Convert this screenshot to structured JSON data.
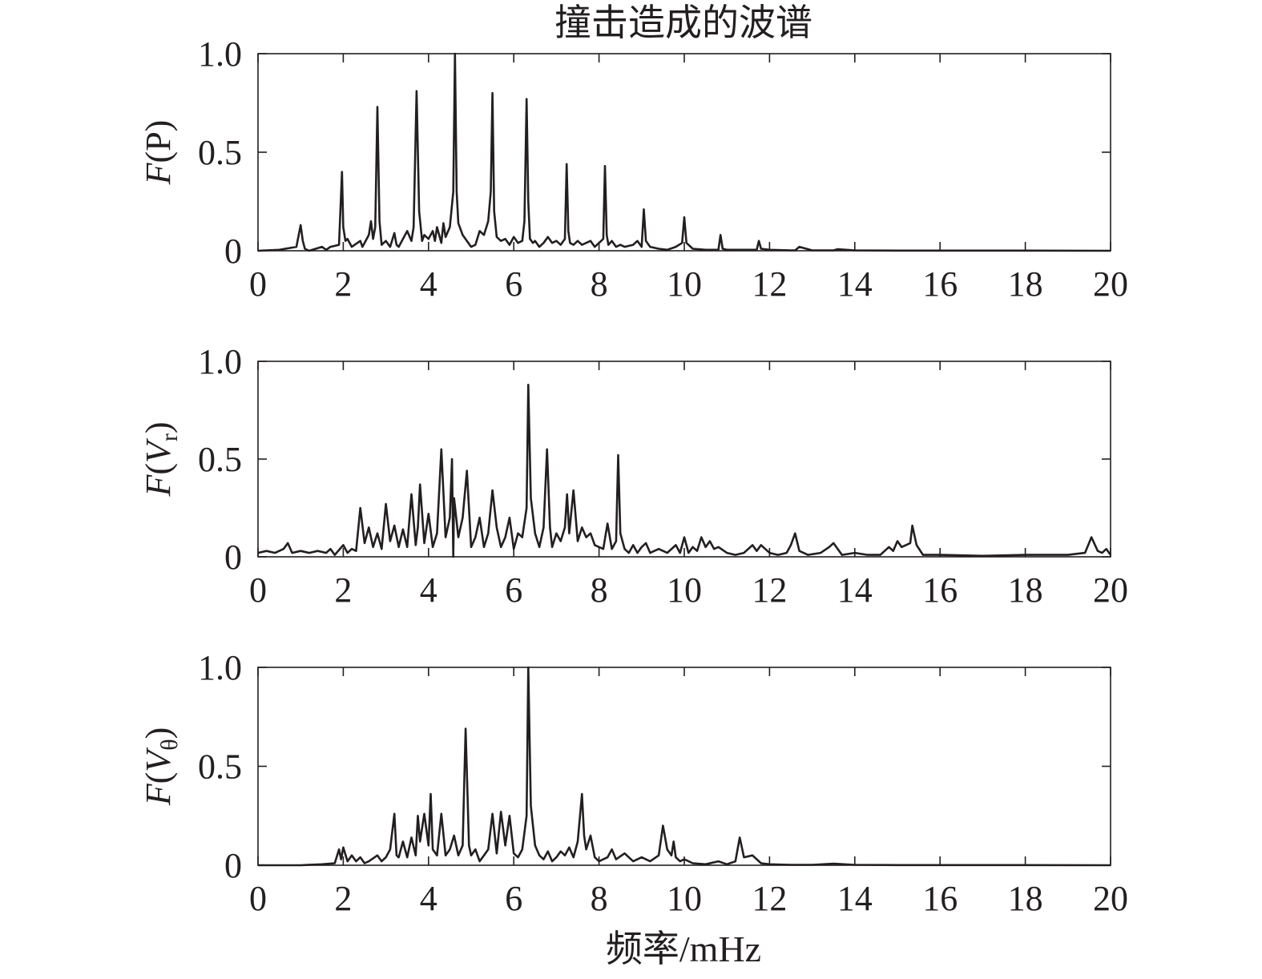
{
  "figure": {
    "title": "撞击造成的波谱",
    "xlabel": "频率/mHz"
  },
  "chart_data": [
    {
      "type": "line",
      "ylabel_parts": [
        {
          "text": "F",
          "italic": true,
          "sub": false
        },
        {
          "text": "(P)",
          "italic": false,
          "sub": false
        }
      ],
      "xlim": [
        0,
        20
      ],
      "ylim": [
        0,
        1
      ],
      "xticks": [
        "0",
        "2",
        "4",
        "6",
        "8",
        "10",
        "12",
        "14",
        "16",
        "18",
        "20"
      ],
      "yticks": [
        "0",
        "0.5",
        "1.0"
      ],
      "x": [
        0,
        0.5,
        0.9,
        1.0,
        1.05,
        1.1,
        1.2,
        1.5,
        1.6,
        1.7,
        1.9,
        1.97,
        2.0,
        2.05,
        2.1,
        2.2,
        2.4,
        2.45,
        2.5,
        2.6,
        2.65,
        2.7,
        2.75,
        2.8,
        2.85,
        2.9,
        2.95,
        3.0,
        3.1,
        3.2,
        3.25,
        3.3,
        3.4,
        3.5,
        3.6,
        3.65,
        3.72,
        3.78,
        3.85,
        3.9,
        4.0,
        4.1,
        4.15,
        4.2,
        4.3,
        4.35,
        4.4,
        4.5,
        4.58,
        4.62,
        4.66,
        4.7,
        4.8,
        4.9,
        5.0,
        5.1,
        5.2,
        5.3,
        5.4,
        5.46,
        5.5,
        5.54,
        5.6,
        5.7,
        5.8,
        5.9,
        6.0,
        6.1,
        6.2,
        6.25,
        6.3,
        6.34,
        6.38,
        6.45,
        6.5,
        6.6,
        6.7,
        6.8,
        6.9,
        7.0,
        7.1,
        7.2,
        7.24,
        7.28,
        7.32,
        7.4,
        7.5,
        7.6,
        7.7,
        7.8,
        7.9,
        8.0,
        8.1,
        8.14,
        8.18,
        8.22,
        8.3,
        8.4,
        8.5,
        8.6,
        8.8,
        8.9,
        9.0,
        9.05,
        9.1,
        9.2,
        9.4,
        9.6,
        9.8,
        9.95,
        10.0,
        10.05,
        10.2,
        10.5,
        10.8,
        10.85,
        10.9,
        11.0,
        11.5,
        11.7,
        11.75,
        11.8,
        12.0,
        12.5,
        12.6,
        12.7,
        13.0,
        13.5,
        13.6,
        14.0,
        15.0,
        16.0,
        18.0,
        20.0
      ],
      "y": [
        0,
        0.005,
        0.02,
        0.13,
        0.05,
        0.01,
        0,
        0.02,
        0.005,
        0.02,
        0.03,
        0.4,
        0.12,
        0.05,
        0.06,
        0.02,
        0.05,
        0.02,
        0.04,
        0.08,
        0.15,
        0.06,
        0.12,
        0.73,
        0.15,
        0.03,
        0.04,
        0.05,
        0.02,
        0.09,
        0.03,
        0.02,
        0.06,
        0.1,
        0.05,
        0.12,
        0.81,
        0.2,
        0.05,
        0.08,
        0.06,
        0.1,
        0.05,
        0.12,
        0.04,
        0.14,
        0.07,
        0.12,
        0.3,
        1.0,
        0.3,
        0.14,
        0.08,
        0.05,
        0.02,
        0.03,
        0.1,
        0.08,
        0.15,
        0.3,
        0.8,
        0.2,
        0.07,
        0.05,
        0.06,
        0.03,
        0.07,
        0.04,
        0.05,
        0.15,
        0.77,
        0.25,
        0.06,
        0.04,
        0.05,
        0.02,
        0.04,
        0.07,
        0.04,
        0.05,
        0.03,
        0.06,
        0.44,
        0.1,
        0.04,
        0.03,
        0.05,
        0.03,
        0.04,
        0.05,
        0.02,
        0.04,
        0.06,
        0.43,
        0.08,
        0.03,
        0.05,
        0.02,
        0.03,
        0.02,
        0.03,
        0.05,
        0.02,
        0.21,
        0.05,
        0.02,
        0.01,
        0.005,
        0.02,
        0.04,
        0.17,
        0.04,
        0.01,
        0.005,
        0.005,
        0.08,
        0.01,
        0.005,
        0.005,
        0.005,
        0.05,
        0.01,
        0.005,
        0.002,
        0.002,
        0.02,
        0.002,
        0.002,
        0.008,
        0.002,
        0.001,
        0.001,
        0.001,
        0
      ]
    },
    {
      "type": "line",
      "ylabel_parts": [
        {
          "text": "F",
          "italic": true,
          "sub": false
        },
        {
          "text": "(",
          "italic": false,
          "sub": false
        },
        {
          "text": "V",
          "italic": true,
          "sub": false
        },
        {
          "text": "r",
          "italic": false,
          "sub": true
        },
        {
          "text": ")",
          "italic": false,
          "sub": false
        }
      ],
      "xlim": [
        0,
        20
      ],
      "ylim": [
        0,
        1
      ],
      "xticks": [
        "0",
        "2",
        "4",
        "6",
        "8",
        "10",
        "12",
        "14",
        "16",
        "18",
        "20"
      ],
      "yticks": [
        "0",
        "0.5",
        "1.0"
      ],
      "x": [
        0,
        0.2,
        0.4,
        0.6,
        0.7,
        0.8,
        1.0,
        1.2,
        1.4,
        1.6,
        1.7,
        1.8,
        2.0,
        2.1,
        2.2,
        2.3,
        2.4,
        2.5,
        2.6,
        2.7,
        2.8,
        2.9,
        3.0,
        3.1,
        3.2,
        3.3,
        3.4,
        3.5,
        3.6,
        3.7,
        3.75,
        3.8,
        3.9,
        4.0,
        4.1,
        4.2,
        4.3,
        4.4,
        4.5,
        4.55,
        4.58,
        4.6,
        4.7,
        4.8,
        4.9,
        5.0,
        5.1,
        5.2,
        5.3,
        5.4,
        5.5,
        5.6,
        5.7,
        5.8,
        5.9,
        6.0,
        6.1,
        6.2,
        6.3,
        6.34,
        6.4,
        6.5,
        6.6,
        6.7,
        6.78,
        6.85,
        6.9,
        7.0,
        7.1,
        7.2,
        7.25,
        7.3,
        7.4,
        7.5,
        7.6,
        7.7,
        7.8,
        7.9,
        8.0,
        8.1,
        8.2,
        8.3,
        8.4,
        8.45,
        8.5,
        8.6,
        8.7,
        8.8,
        8.9,
        9.0,
        9.1,
        9.2,
        9.4,
        9.6,
        9.8,
        9.9,
        10.0,
        10.1,
        10.2,
        10.3,
        10.4,
        10.5,
        10.6,
        10.7,
        10.8,
        11.0,
        11.2,
        11.4,
        11.6,
        11.7,
        11.8,
        12.0,
        12.2,
        12.4,
        12.5,
        12.6,
        12.7,
        12.9,
        13.2,
        13.4,
        13.5,
        13.7,
        14.0,
        14.3,
        14.6,
        14.8,
        14.9,
        15.0,
        15.1,
        15.2,
        15.3,
        15.35,
        15.45,
        15.6,
        16.0,
        17.0,
        18.0,
        19.0,
        19.4,
        19.55,
        19.7,
        19.8,
        19.9,
        20.0
      ],
      "y": [
        0.02,
        0.03,
        0.02,
        0.04,
        0.07,
        0.02,
        0.03,
        0.02,
        0.03,
        0.02,
        0.04,
        0.01,
        0.06,
        0.02,
        0.04,
        0.03,
        0.25,
        0.07,
        0.15,
        0.05,
        0.12,
        0.04,
        0.27,
        0.08,
        0.16,
        0.05,
        0.14,
        0.05,
        0.32,
        0.06,
        0.15,
        0.37,
        0.07,
        0.22,
        0.05,
        0.12,
        0.55,
        0.1,
        0.2,
        0.5,
        0.0,
        0.3,
        0.1,
        0.2,
        0.44,
        0.05,
        0.1,
        0.2,
        0.05,
        0.12,
        0.34,
        0.15,
        0.05,
        0.1,
        0.2,
        0.04,
        0.12,
        0.1,
        0.25,
        0.88,
        0.3,
        0.12,
        0.05,
        0.15,
        0.55,
        0.15,
        0.05,
        0.12,
        0.08,
        0.15,
        0.32,
        0.12,
        0.34,
        0.08,
        0.15,
        0.1,
        0.12,
        0.06,
        0.05,
        0.04,
        0.17,
        0.04,
        0.08,
        0.52,
        0.12,
        0.04,
        0.02,
        0.06,
        0.02,
        0.05,
        0.07,
        0.02,
        0.04,
        0.02,
        0.06,
        0.02,
        0.1,
        0.02,
        0.05,
        0.03,
        0.1,
        0.05,
        0.08,
        0.04,
        0.05,
        0.02,
        0.01,
        0.02,
        0.06,
        0.03,
        0.06,
        0.02,
        0.01,
        0.02,
        0.06,
        0.12,
        0.03,
        0.01,
        0.02,
        0.05,
        0.07,
        0.01,
        0.02,
        0.01,
        0.01,
        0.05,
        0.03,
        0.08,
        0.05,
        0.06,
        0.07,
        0.16,
        0.06,
        0.01,
        0.01,
        0.005,
        0.01,
        0.01,
        0.02,
        0.1,
        0.03,
        0.02,
        0.04,
        0.01
      ]
    },
    {
      "type": "line",
      "ylabel_parts": [
        {
          "text": "F",
          "italic": true,
          "sub": false
        },
        {
          "text": "(",
          "italic": false,
          "sub": false
        },
        {
          "text": "V",
          "italic": true,
          "sub": false
        },
        {
          "text": "θ",
          "italic": false,
          "sub": true
        },
        {
          "text": ")",
          "italic": false,
          "sub": false
        }
      ],
      "xlim": [
        0,
        20
      ],
      "ylim": [
        0,
        1
      ],
      "xticks": [
        "0",
        "2",
        "4",
        "6",
        "8",
        "10",
        "12",
        "14",
        "16",
        "18",
        "20"
      ],
      "yticks": [
        "0",
        "0.5",
        "1.0"
      ],
      "x": [
        0,
        1.0,
        1.5,
        1.8,
        1.9,
        1.95,
        2.0,
        2.1,
        2.2,
        2.3,
        2.4,
        2.5,
        2.6,
        2.8,
        2.9,
        3.0,
        3.1,
        3.2,
        3.25,
        3.3,
        3.4,
        3.5,
        3.6,
        3.7,
        3.75,
        3.8,
        3.9,
        4.0,
        4.05,
        4.1,
        4.2,
        4.3,
        4.4,
        4.5,
        4.6,
        4.7,
        4.8,
        4.87,
        4.95,
        5.0,
        5.1,
        5.2,
        5.3,
        5.4,
        5.5,
        5.6,
        5.7,
        5.8,
        5.9,
        6.0,
        6.1,
        6.2,
        6.3,
        6.34,
        6.4,
        6.5,
        6.6,
        6.7,
        6.8,
        6.9,
        7.0,
        7.1,
        7.2,
        7.3,
        7.4,
        7.5,
        7.6,
        7.65,
        7.7,
        7.8,
        7.9,
        8.0,
        8.2,
        8.3,
        8.4,
        8.6,
        8.8,
        9.0,
        9.2,
        9.4,
        9.5,
        9.6,
        9.7,
        9.75,
        9.8,
        9.9,
        10.0,
        10.2,
        10.5,
        10.8,
        11.0,
        11.2,
        11.3,
        11.4,
        11.6,
        11.8,
        12.0,
        12.5,
        13.0,
        13.5,
        14.0,
        15.0,
        17.0,
        20.0
      ],
      "y": [
        0,
        0,
        0.005,
        0.01,
        0.08,
        0.03,
        0.09,
        0.02,
        0.05,
        0.02,
        0.04,
        0.01,
        0.02,
        0.05,
        0.02,
        0.04,
        0.08,
        0.26,
        0.05,
        0.04,
        0.12,
        0.04,
        0.14,
        0.05,
        0.25,
        0.12,
        0.26,
        0.1,
        0.36,
        0.08,
        0.05,
        0.26,
        0.05,
        0.08,
        0.15,
        0.05,
        0.1,
        0.69,
        0.1,
        0.05,
        0.08,
        0.02,
        0.05,
        0.08,
        0.26,
        0.06,
        0.27,
        0.1,
        0.25,
        0.06,
        0.04,
        0.08,
        0.25,
        1.0,
        0.3,
        0.1,
        0.05,
        0.03,
        0.07,
        0.02,
        0.04,
        0.07,
        0.05,
        0.09,
        0.04,
        0.12,
        0.36,
        0.15,
        0.08,
        0.15,
        0.04,
        0.02,
        0.04,
        0.08,
        0.03,
        0.06,
        0.02,
        0.04,
        0.02,
        0.05,
        0.2,
        0.08,
        0.05,
        0.12,
        0.04,
        0.02,
        0.03,
        0.01,
        0.005,
        0.02,
        0.005,
        0.02,
        0.14,
        0.04,
        0.05,
        0.01,
        0.005,
        0.002,
        0.002,
        0.008,
        0.002,
        0.001,
        0.001,
        0
      ]
    }
  ]
}
